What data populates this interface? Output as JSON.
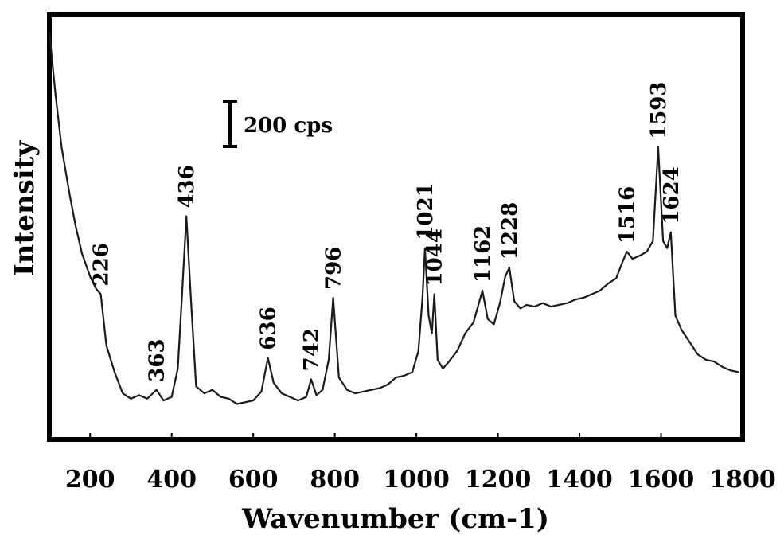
{
  "chart_data": {
    "type": "line",
    "title": "",
    "xlabel": "Wavenumber (cm-1)",
    "ylabel": "Intensity",
    "xlim": [
      100,
      1800
    ],
    "x_ticks": [
      200,
      400,
      600,
      800,
      1000,
      1200,
      1400,
      1600,
      1800
    ],
    "grid": false,
    "legend": "none",
    "scale_bar_label": "200 cps",
    "line_color": "#1a1a1a",
    "series": [
      {
        "x": [
          100,
          115,
          130,
          150,
          165,
          180,
          200,
          215,
          226,
          240,
          260,
          280,
          300,
          320,
          340,
          363,
          380,
          400,
          415,
          425,
          436,
          447,
          460,
          480,
          500,
          520,
          540,
          560,
          580,
          600,
          620,
          636,
          650,
          670,
          690,
          710,
          730,
          742,
          755,
          770,
          785,
          796,
          810,
          830,
          850,
          870,
          890,
          910,
          930,
          950,
          970,
          990,
          1005,
          1015,
          1021,
          1030,
          1038,
          1044,
          1052,
          1065,
          1080,
          1100,
          1120,
          1140,
          1162,
          1175,
          1190,
          1205,
          1218,
          1228,
          1240,
          1255,
          1270,
          1290,
          1310,
          1330,
          1350,
          1370,
          1390,
          1410,
          1430,
          1450,
          1470,
          1490,
          1505,
          1516,
          1530,
          1550,
          1565,
          1580,
          1593,
          1605,
          1615,
          1624,
          1635,
          1650,
          1670,
          1690,
          1710,
          1730,
          1750,
          1770,
          1790
        ],
        "y": [
          3000,
          2650,
          2350,
          2080,
          1900,
          1750,
          1620,
          1550,
          1520,
          1230,
          1080,
          960,
          930,
          950,
          930,
          980,
          920,
          940,
          1100,
          1500,
          1960,
          1500,
          1000,
          960,
          980,
          940,
          930,
          900,
          910,
          920,
          970,
          1160,
          1020,
          960,
          940,
          920,
          940,
          1040,
          950,
          980,
          1150,
          1500,
          1050,
          980,
          960,
          970,
          980,
          990,
          1010,
          1050,
          1060,
          1080,
          1200,
          1500,
          1780,
          1400,
          1300,
          1520,
          1150,
          1100,
          1140,
          1200,
          1300,
          1360,
          1540,
          1380,
          1350,
          1470,
          1620,
          1670,
          1480,
          1440,
          1460,
          1450,
          1470,
          1450,
          1460,
          1470,
          1490,
          1500,
          1520,
          1540,
          1580,
          1610,
          1700,
          1760,
          1720,
          1740,
          1760,
          1820,
          2350,
          1820,
          1780,
          1870,
          1400,
          1320,
          1250,
          1180,
          1150,
          1140,
          1110,
          1090,
          1080
        ]
      }
    ],
    "peak_labels": [
      {
        "x": 226,
        "text": "226"
      },
      {
        "x": 363,
        "text": "363"
      },
      {
        "x": 436,
        "text": "436"
      },
      {
        "x": 636,
        "text": "636"
      },
      {
        "x": 742,
        "text": "742"
      },
      {
        "x": 796,
        "text": "796"
      },
      {
        "x": 1021,
        "text": "1021"
      },
      {
        "x": 1044,
        "text": "1044"
      },
      {
        "x": 1162,
        "text": "1162"
      },
      {
        "x": 1228,
        "text": "1228"
      },
      {
        "x": 1516,
        "text": "1516"
      },
      {
        "x": 1593,
        "text": "1593"
      },
      {
        "x": 1624,
        "text": "1624"
      }
    ]
  }
}
